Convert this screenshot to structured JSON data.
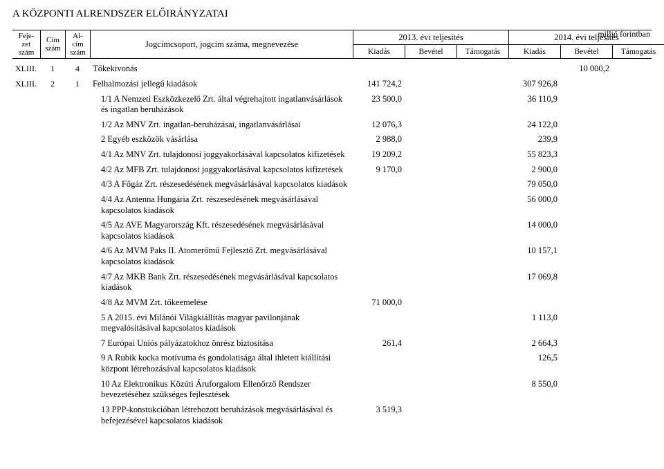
{
  "title": "A KÖZPONTI ALRENDSZER ELŐIRÁNYZATAI",
  "unit": "millió forintban",
  "header": {
    "fejezet": "Feje-\nzet\nszám",
    "cim": "Cím\nszám",
    "alcim": "Al-\ncím\nszám",
    "nameCol": "Jogcímcsoport, jogcím száma, megnevezése",
    "year2013": "2013. évi teljesítés",
    "year2014": "2014. évi teljesítés",
    "kiadas": "Kiadás",
    "bevetel": "Bevétel",
    "tamogatas": "Támogatás"
  },
  "rows": [
    {
      "fejezet": "XLIII.",
      "cim": "1",
      "alcim": "4",
      "indent": 0,
      "name": "Tőkekivonás",
      "k13": "",
      "b13": "",
      "t13": "",
      "k14": "",
      "b14": "10 000,2",
      "t14": ""
    },
    {
      "fejezet": "XLIII.",
      "cim": "2",
      "alcim": "1",
      "indent": 0,
      "name": "Felhalmozási jellegű kiadások",
      "k13": "141 724,2",
      "b13": "",
      "t13": "",
      "k14": "307 926,8",
      "b14": "",
      "t14": ""
    },
    {
      "fejezet": "",
      "cim": "",
      "alcim": "",
      "indent": 1,
      "name": "1/1 A Nemzeti Eszközkezelő Zrt. által végrehajtott ingatlanvásárlások és ingatlan beruházások",
      "k13": "23 500,0",
      "b13": "",
      "t13": "",
      "k14": "36 110,9",
      "b14": "",
      "t14": ""
    },
    {
      "fejezet": "",
      "cim": "",
      "alcim": "",
      "indent": 1,
      "name": "1/2 Az MNV Zrt. ingatlan-beruházásai, ingatlanvásárlásai",
      "k13": "12 076,3",
      "b13": "",
      "t13": "",
      "k14": "24 122,0",
      "b14": "",
      "t14": ""
    },
    {
      "fejezet": "",
      "cim": "",
      "alcim": "",
      "indent": 1,
      "name": "2 Egyéb eszközök vásárlása",
      "k13": "2 988,0",
      "b13": "",
      "t13": "",
      "k14": "239,9",
      "b14": "",
      "t14": ""
    },
    {
      "fejezet": "",
      "cim": "",
      "alcim": "",
      "indent": 1,
      "name": "4/1 Az MNV Zrt. tulajdonosi joggyakorlásával kapcsolatos kifizetések",
      "k13": "19 209,2",
      "b13": "",
      "t13": "",
      "k14": "55 823,3",
      "b14": "",
      "t14": ""
    },
    {
      "fejezet": "",
      "cim": "",
      "alcim": "",
      "indent": 1,
      "name": "4/2 Az MFB Zrt. tulajdonosi joggyakorlásával kapcsolatos kifizetések",
      "k13": "9 170,0",
      "b13": "",
      "t13": "",
      "k14": "2 900,0",
      "b14": "",
      "t14": ""
    },
    {
      "fejezet": "",
      "cim": "",
      "alcim": "",
      "indent": 1,
      "name": "4/3 A Főgáz Zrt. részesedésének megvásárlásával kapcsolatos kiadások",
      "k13": "",
      "b13": "",
      "t13": "",
      "k14": "79 050,0",
      "b14": "",
      "t14": ""
    },
    {
      "fejezet": "",
      "cim": "",
      "alcim": "",
      "indent": 1,
      "name": "4/4 Az Antenna Hungária Zrt. részesedésének megvásárlásával kapcsolatos kiadások",
      "k13": "",
      "b13": "",
      "t13": "",
      "k14": "56 000,0",
      "b14": "",
      "t14": ""
    },
    {
      "fejezet": "",
      "cim": "",
      "alcim": "",
      "indent": 1,
      "name": "4/5 Az AVE Magyarország Kft. részesedésének megvásárlásával kapcsolatos kiadások",
      "k13": "",
      "b13": "",
      "t13": "",
      "k14": "14 000,0",
      "b14": "",
      "t14": ""
    },
    {
      "fejezet": "",
      "cim": "",
      "alcim": "",
      "indent": 1,
      "name": "4/6 Az MVM Paks II. Atomerőmű Fejlesztő Zrt. megvásárlásával kapcsolatos kiadások",
      "k13": "",
      "b13": "",
      "t13": "",
      "k14": "10 157,1",
      "b14": "",
      "t14": ""
    },
    {
      "fejezet": "",
      "cim": "",
      "alcim": "",
      "indent": 1,
      "name": "4/7 Az MKB Bank Zrt. részesedésének megvásárlásával kapcsolatos kiadások",
      "k13": "",
      "b13": "",
      "t13": "",
      "k14": "17 069,8",
      "b14": "",
      "t14": ""
    },
    {
      "fejezet": "",
      "cim": "",
      "alcim": "",
      "indent": 1,
      "name": "4/8 Az MVM Zrt. tőkeemelése",
      "k13": "71 000,0",
      "b13": "",
      "t13": "",
      "k14": "",
      "b14": "",
      "t14": ""
    },
    {
      "fejezet": "",
      "cim": "",
      "alcim": "",
      "indent": 1,
      "name": "5 A 2015. évi Milánói Világkiállítás magyar pavilonjának megvalósításával kapcsolatos kiadások",
      "k13": "",
      "b13": "",
      "t13": "",
      "k14": "1 113,0",
      "b14": "",
      "t14": ""
    },
    {
      "fejezet": "",
      "cim": "",
      "alcim": "",
      "indent": 1,
      "name": "7 Európai Uniós pályázatokhoz önrész biztosítása",
      "k13": "261,4",
      "b13": "",
      "t13": "",
      "k14": "2 664,3",
      "b14": "",
      "t14": ""
    },
    {
      "fejezet": "",
      "cim": "",
      "alcim": "",
      "indent": 1,
      "name": "9 A Rubik kocka motívuma és gondolatisága által ihletett kiállítási központ létrehozásával kapcsolatos kiadások",
      "k13": "",
      "b13": "",
      "t13": "",
      "k14": "126,5",
      "b14": "",
      "t14": ""
    },
    {
      "fejezet": "",
      "cim": "",
      "alcim": "",
      "indent": 1,
      "name": "10 Az Elektronikus Közúti Áruforgalom Ellenőrző Rendszer bevezetéséhez szükséges fejlesztések",
      "k13": "",
      "b13": "",
      "t13": "",
      "k14": "8 550,0",
      "b14": "",
      "t14": ""
    },
    {
      "fejezet": "",
      "cim": "",
      "alcim": "",
      "indent": 1,
      "name": "13 PPP-konstukcióban létrehozott beruházások megvásárlásával és befejezésével kapcsolatos kiadások",
      "k13": "3 519,3",
      "b13": "",
      "t13": "",
      "k14": "",
      "b14": "",
      "t14": ""
    }
  ]
}
